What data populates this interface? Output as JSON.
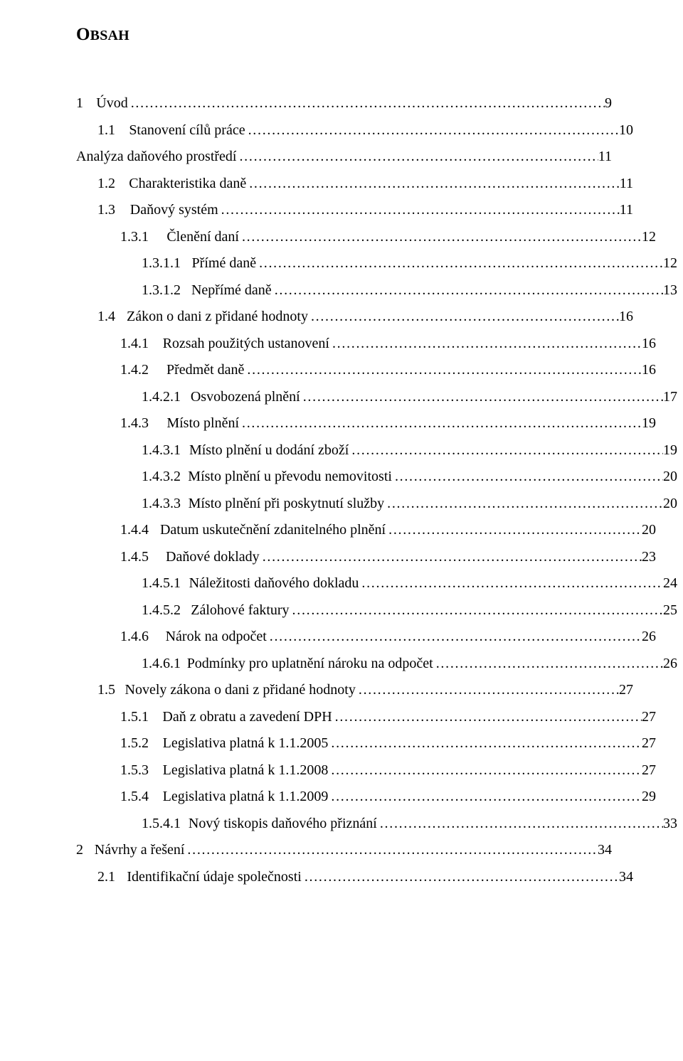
{
  "title_main": "O",
  "title_rest": "BSAH",
  "toc": [
    {
      "lvl": 1,
      "num": "1",
      "label": "Úvod",
      "page": "9",
      "gap": "a"
    },
    {
      "lvl": 2,
      "num": "1.1",
      "label": "Stanovení cílů práce",
      "page": "10",
      "gap": "b"
    },
    {
      "lvl": 1,
      "num": "",
      "label": "Analýza daňového prostředí",
      "page": "11",
      "gap": ""
    },
    {
      "lvl": 2,
      "num": "1.2",
      "label": "Charakteristika daně",
      "page": "11",
      "gap": "b"
    },
    {
      "lvl": 2,
      "num": "1.3",
      "label": "Daňový systém",
      "page": "11",
      "gap": "b"
    },
    {
      "lvl": 3,
      "num": "1.3.1",
      "label": "Členění daní",
      "page": "12",
      "gap": "c"
    },
    {
      "lvl": 4,
      "num": "1.3.1.1",
      "label": "Přímé daně",
      "page": "12",
      "gap": "d"
    },
    {
      "lvl": 4,
      "num": "1.3.1.2",
      "label": "Nepřímé daně",
      "page": "13",
      "gap": "d"
    },
    {
      "lvl": 2,
      "num": "1.4",
      "label": "Zákon o dani z přidané hodnoty",
      "page": "16",
      "gap": "b"
    },
    {
      "lvl": 3,
      "num": "1.4.1",
      "label": "Rozsah použitých ustanovení",
      "page": "16",
      "gap": "c"
    },
    {
      "lvl": 3,
      "num": "1.4.2",
      "label": "Předmět daně",
      "page": "16",
      "gap": "c"
    },
    {
      "lvl": 4,
      "num": "1.4.2.1",
      "label": "Osvobozená plnění",
      "page": "17",
      "gap": "d"
    },
    {
      "lvl": 3,
      "num": "1.4.3",
      "label": "Místo plnění",
      "page": "19",
      "gap": "c"
    },
    {
      "lvl": 4,
      "num": "1.4.3.1",
      "label": "Místo plnění u dodání zboží",
      "page": "19",
      "gap": "d"
    },
    {
      "lvl": 4,
      "num": "1.4.3.2",
      "label": "Místo plnění u převodu nemovitosti",
      "page": "20",
      "gap": "d"
    },
    {
      "lvl": 4,
      "num": "1.4.3.3",
      "label": "Místo plnění při poskytnutí služby",
      "page": "20",
      "gap": "d"
    },
    {
      "lvl": 3,
      "num": "1.4.4",
      "label": "Datum uskutečnění zdanitelného plnění",
      "page": "20",
      "gap": "c"
    },
    {
      "lvl": 3,
      "num": "1.4.5",
      "label": "Daňové doklady",
      "page": "23",
      "gap": "c"
    },
    {
      "lvl": 4,
      "num": "1.4.5.1",
      "label": "Náležitosti daňového dokladu",
      "page": "24",
      "gap": "d"
    },
    {
      "lvl": 4,
      "num": "1.4.5.2",
      "label": "Zálohové faktury",
      "page": "25",
      "gap": "d"
    },
    {
      "lvl": 3,
      "num": "1.4.6",
      "label": "Nárok na odpočet",
      "page": "26",
      "gap": "c"
    },
    {
      "lvl": 4,
      "num": "1.4.6.1",
      "label": "Podmínky pro uplatnění nároku na odpočet",
      "page": "26",
      "gap": "d"
    },
    {
      "lvl": 2,
      "num": "1.5",
      "label": "Novely zákona o dani z přidané hodnoty",
      "page": "27",
      "gap": "b"
    },
    {
      "lvl": 3,
      "num": "1.5.1",
      "label": "Daň z obratu a zavedení DPH",
      "page": "27",
      "gap": "c"
    },
    {
      "lvl": 3,
      "num": "1.5.2",
      "label": "Legislativa platná k 1.1.2005",
      "page": "27",
      "gap": "c"
    },
    {
      "lvl": 3,
      "num": "1.5.3",
      "label": "Legislativa platná k 1.1.2008",
      "page": "27",
      "gap": "c"
    },
    {
      "lvl": 3,
      "num": "1.5.4",
      "label": "Legislativa platná k 1.1.2009",
      "page": "29",
      "gap": "c"
    },
    {
      "lvl": 4,
      "num": "1.5.4.1",
      "label": "Nový tiskopis daňového přiznání",
      "page": "33",
      "gap": "d"
    },
    {
      "lvl": 1,
      "num": "2",
      "label": "Návrhy a řešení",
      "page": "34",
      "gap": "a"
    },
    {
      "lvl": 2,
      "num": "2.1",
      "label": "Identifikační údaje společnosti",
      "page": "34",
      "gap": "b"
    }
  ]
}
